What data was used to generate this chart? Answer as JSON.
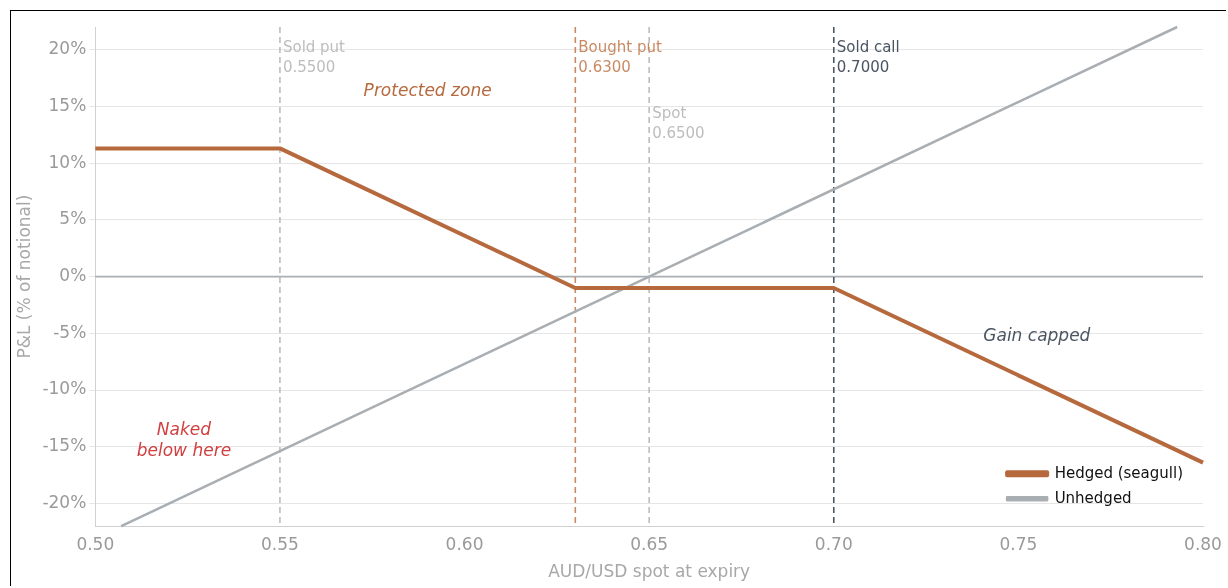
{
  "chart_data": {
    "type": "line",
    "xlabel": "AUD/USD spot at expiry",
    "ylabel": "P&L (% of notional)",
    "xlim": [
      0.5,
      0.8
    ],
    "ylim": [
      -22,
      22
    ],
    "xticks": [
      {
        "value": 0.5,
        "label": "0.50"
      },
      {
        "value": 0.55,
        "label": "0.55"
      },
      {
        "value": 0.6,
        "label": "0.60"
      },
      {
        "value": 0.65,
        "label": "0.65"
      },
      {
        "value": 0.7,
        "label": "0.70"
      },
      {
        "value": 0.75,
        "label": "0.75"
      },
      {
        "value": 0.8,
        "label": "0.80"
      }
    ],
    "yticks": [
      {
        "value": -20,
        "label": "-20%"
      },
      {
        "value": -15,
        "label": "-15%"
      },
      {
        "value": -10,
        "label": "-10%"
      },
      {
        "value": -5,
        "label": "-5%"
      },
      {
        "value": 0,
        "label": "0%"
      },
      {
        "value": 5,
        "label": "5%"
      },
      {
        "value": 10,
        "label": "10%"
      },
      {
        "value": 15,
        "label": "15%"
      },
      {
        "value": 20,
        "label": "20%"
      }
    ],
    "series": [
      {
        "name": "Hedged (seagull)",
        "color": "#b5693d",
        "x": [
          0.5,
          0.55,
          0.63,
          0.7,
          0.8
        ],
        "values": [
          11.3,
          11.3,
          -1,
          -1,
          -16.4
        ]
      },
      {
        "name": "Unhedged",
        "color": "#a9aeb3",
        "x": [
          0.507,
          0.65,
          0.793
        ],
        "values": [
          -22,
          0,
          22
        ]
      }
    ],
    "ref_lines": [
      {
        "axis": "y",
        "value": 0,
        "color": "#a9aeb3",
        "line_style": "solid"
      },
      {
        "axis": "x",
        "value": 0.55,
        "label": "Sold put\n0.5500",
        "color": "#bdbdbd",
        "line_style": "dashed"
      },
      {
        "axis": "x",
        "value": 0.63,
        "label": "Bought put\n0.6300",
        "color": "#c98a63",
        "line_style": "dashed"
      },
      {
        "axis": "x",
        "value": 0.65,
        "label": "Spot\n0.6500",
        "color": "#bdbdbd",
        "line_style": "dashed"
      },
      {
        "axis": "x",
        "value": 0.7,
        "label": "Sold call\n0.7000",
        "color": "#4a5562",
        "line_style": "dashed"
      }
    ],
    "annotations": [
      "Protected zone",
      "Gain capped",
      "Naked\nbelow here"
    ],
    "grid": "y",
    "legend": "bottom right",
    "marker": "none",
    "line_style": "solid"
  }
}
